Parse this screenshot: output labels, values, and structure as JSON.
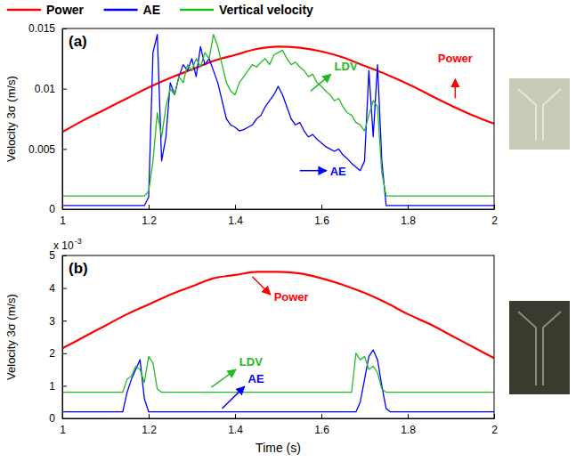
{
  "chart_data": [
    {
      "type": "line",
      "title": "(a)",
      "ylabel": "Velocity 3σ (m/s)",
      "legend": "top",
      "xlim": [
        1,
        2
      ],
      "xticks": [
        1,
        1.2,
        1.4,
        1.6,
        1.8,
        2
      ],
      "ylim": [
        0,
        0.015
      ],
      "yticks": [
        0,
        0.005,
        0.01,
        0.015
      ],
      "series": [
        {
          "name": "Power",
          "color": "#ff0000",
          "x": [
            1,
            1.05,
            1.1,
            1.15,
            1.2,
            1.25,
            1.3,
            1.35,
            1.4,
            1.45,
            1.5,
            1.55,
            1.6,
            1.65,
            1.7,
            1.75,
            1.8,
            1.85,
            1.9,
            1.95,
            2
          ],
          "values": [
            0.0064,
            0.0074,
            0.0083,
            0.0092,
            0.0101,
            0.0109,
            0.0116,
            0.0123,
            0.0128,
            0.0133,
            0.0135,
            0.0134,
            0.0131,
            0.0126,
            0.0119,
            0.0112,
            0.0104,
            0.0095,
            0.0086,
            0.0078,
            0.0071
          ]
        },
        {
          "name": "AE",
          "color": "#0000ff",
          "x": [
            1,
            1.19,
            1.2,
            1.21,
            1.22,
            1.23,
            1.24,
            1.25,
            1.26,
            1.27,
            1.28,
            1.29,
            1.3,
            1.31,
            1.32,
            1.33,
            1.34,
            1.35,
            1.36,
            1.37,
            1.38,
            1.39,
            1.4,
            1.41,
            1.42,
            1.43,
            1.44,
            1.45,
            1.46,
            1.47,
            1.48,
            1.49,
            1.5,
            1.51,
            1.52,
            1.53,
            1.54,
            1.55,
            1.56,
            1.57,
            1.58,
            1.59,
            1.6,
            1.61,
            1.62,
            1.63,
            1.64,
            1.65,
            1.66,
            1.67,
            1.68,
            1.69,
            1.7,
            1.71,
            1.72,
            1.73,
            1.74,
            1.75,
            2
          ],
          "values": [
            0.0003,
            0.0003,
            0.001,
            0.013,
            0.0145,
            0.004,
            0.006,
            0.0105,
            0.0095,
            0.011,
            0.012,
            0.0115,
            0.0125,
            0.011,
            0.0135,
            0.012,
            0.0125,
            0.0115,
            0.0105,
            0.009,
            0.0075,
            0.007,
            0.0068,
            0.0065,
            0.0066,
            0.0068,
            0.007,
            0.0075,
            0.0078,
            0.0085,
            0.009,
            0.0095,
            0.0102,
            0.0095,
            0.0085,
            0.0075,
            0.007,
            0.0072,
            0.0065,
            0.006,
            0.0062,
            0.0058,
            0.0055,
            0.0052,
            0.005,
            0.0048,
            0.005,
            0.0045,
            0.0042,
            0.0038,
            0.0035,
            0.0032,
            0.004,
            0.0115,
            0.006,
            0.012,
            0.004,
            0.0003,
            0.0003
          ]
        },
        {
          "name": "Vertical velocity",
          "color": "#22bb22",
          "x": [
            1,
            1.19,
            1.2,
            1.21,
            1.22,
            1.23,
            1.24,
            1.25,
            1.26,
            1.27,
            1.28,
            1.29,
            1.3,
            1.31,
            1.32,
            1.33,
            1.34,
            1.35,
            1.36,
            1.37,
            1.38,
            1.39,
            1.4,
            1.41,
            1.42,
            1.43,
            1.44,
            1.45,
            1.46,
            1.47,
            1.48,
            1.49,
            1.5,
            1.51,
            1.52,
            1.53,
            1.54,
            1.55,
            1.56,
            1.57,
            1.58,
            1.59,
            1.6,
            1.61,
            1.62,
            1.63,
            1.64,
            1.65,
            1.66,
            1.67,
            1.68,
            1.69,
            1.7,
            1.71,
            1.72,
            1.73,
            1.74,
            1.75,
            2
          ],
          "values": [
            0.0011,
            0.0011,
            0.0015,
            0.004,
            0.008,
            0.006,
            0.0085,
            0.01,
            0.0095,
            0.011,
            0.0105,
            0.012,
            0.0115,
            0.0125,
            0.0118,
            0.013,
            0.0125,
            0.0145,
            0.0135,
            0.012,
            0.0105,
            0.0098,
            0.0095,
            0.0105,
            0.011,
            0.0115,
            0.012,
            0.0118,
            0.0122,
            0.0125,
            0.012,
            0.0128,
            0.013,
            0.0132,
            0.0125,
            0.012,
            0.0122,
            0.0118,
            0.0115,
            0.011,
            0.0112,
            0.0105,
            0.0102,
            0.0098,
            0.0095,
            0.009,
            0.0092,
            0.0085,
            0.008,
            0.0078,
            0.0072,
            0.007,
            0.0065,
            0.0078,
            0.009,
            0.0085,
            0.003,
            0.0011,
            0.0011
          ]
        }
      ],
      "annotations": [
        {
          "text": "LDV",
          "color": "#22bb22"
        },
        {
          "text": "Power",
          "color": "#ff0000"
        },
        {
          "text": "AE",
          "color": "#0000ff"
        }
      ]
    },
    {
      "type": "line",
      "title": "(b)",
      "ylabel": "Velocity 3σ (m/s)",
      "xlabel": "Time (s)",
      "y_multiplier": {
        "text": "x 10",
        "exponent": "-3"
      },
      "xlim": [
        1,
        2
      ],
      "xticks": [
        1,
        1.2,
        1.4,
        1.6,
        1.8,
        2
      ],
      "ylim": [
        0,
        0.005
      ],
      "yticks": [
        0,
        {
          "value": 0.001,
          "label": "1"
        },
        {
          "value": 0.002,
          "label": "2"
        },
        {
          "value": 0.003,
          "label": "3"
        },
        {
          "value": 0.004,
          "label": "4"
        },
        {
          "value": 0.005,
          "label": "5"
        }
      ],
      "series": [
        {
          "color": "#ff0000",
          "x": [
            1,
            1.05,
            1.1,
            1.15,
            1.2,
            1.25,
            1.3,
            1.35,
            1.4,
            1.45,
            1.5,
            1.55,
            1.6,
            1.65,
            1.7,
            1.75,
            1.8,
            1.85,
            1.9,
            1.95,
            2
          ],
          "values": [
            0.00215,
            0.0025,
            0.00285,
            0.0032,
            0.0035,
            0.0038,
            0.00405,
            0.0043,
            0.0044,
            0.0045,
            0.0045,
            0.00445,
            0.0043,
            0.0041,
            0.00385,
            0.00355,
            0.0032,
            0.0029,
            0.00255,
            0.0022,
            0.00185
          ]
        },
        {
          "color": "#0000ff",
          "x": [
            1,
            1.14,
            1.15,
            1.16,
            1.17,
            1.18,
            1.19,
            1.2,
            1.68,
            1.69,
            1.7,
            1.71,
            1.72,
            1.73,
            1.74,
            1.75,
            1.76,
            2
          ],
          "values": [
            0.0002,
            0.0002,
            0.0008,
            0.0012,
            0.0015,
            0.0018,
            0.0006,
            0.0002,
            0.0002,
            0.0005,
            0.0012,
            0.0019,
            0.0021,
            0.0018,
            0.001,
            0.0003,
            0.0002,
            0.0002
          ]
        },
        {
          "color": "#22bb22",
          "x": [
            1,
            1.14,
            1.15,
            1.16,
            1.17,
            1.18,
            1.19,
            1.2,
            1.21,
            1.22,
            1.23,
            1.67,
            1.68,
            1.69,
            1.7,
            1.71,
            1.72,
            1.73,
            1.74,
            1.75,
            2
          ],
          "values": [
            0.0008,
            0.0008,
            0.0012,
            0.0013,
            0.0016,
            0.0015,
            0.0011,
            0.0019,
            0.0017,
            0.0009,
            0.0008,
            0.0008,
            0.002,
            0.0018,
            0.0019,
            0.0015,
            0.0016,
            0.0014,
            0.0009,
            0.0008,
            0.0008
          ]
        }
      ],
      "annotations": [
        {
          "text": "Power",
          "color": "#ff0000"
        },
        {
          "text": "LDV",
          "color": "#22bb22"
        },
        {
          "text": "AE",
          "color": "#0000ff"
        }
      ]
    }
  ]
}
